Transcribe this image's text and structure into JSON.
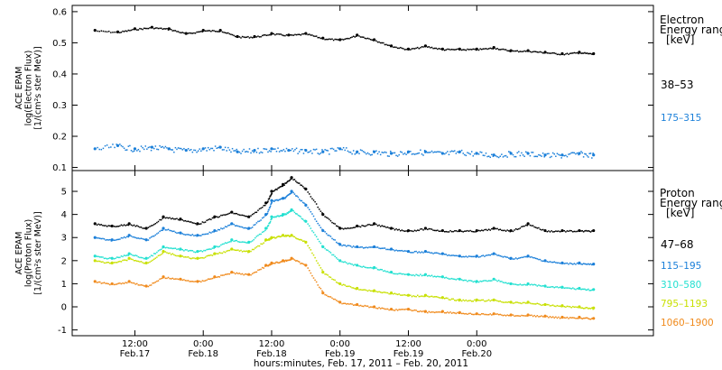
{
  "chart_data": [
    {
      "type": "scatter",
      "ylabel_lines": [
        "ACE EPAM",
        "log(Electron Flux)",
        "[1/(cm²s ster MeV)]"
      ],
      "ylim": [
        0.09,
        0.62
      ],
      "y_ticks": [
        0.1,
        0.2,
        0.3,
        0.4,
        0.5,
        0.6
      ],
      "y_tick_labels": [
        "0.1",
        "0.2",
        "0.3",
        "0.4",
        "0.5",
        "0.6"
      ],
      "legend_title_lines": [
        "Electron",
        "Energy ranges",
        "[keV]"
      ],
      "series": [
        {
          "name": "38–53",
          "color": "#000000",
          "x": [
            -7,
            -3,
            0,
            3,
            6,
            9,
            12,
            15,
            18,
            21,
            24,
            27,
            30,
            33,
            36,
            39,
            42,
            45,
            48,
            51,
            54,
            57,
            60,
            63,
            66,
            69,
            72,
            75,
            78,
            80.5
          ],
          "y": [
            0.54,
            0.535,
            0.545,
            0.55,
            0.545,
            0.53,
            0.54,
            0.54,
            0.52,
            0.52,
            0.53,
            0.525,
            0.53,
            0.515,
            0.51,
            0.525,
            0.51,
            0.49,
            0.48,
            0.49,
            0.48,
            0.48,
            0.48,
            0.485,
            0.475,
            0.475,
            0.47,
            0.465,
            0.47,
            0.465
          ]
        },
        {
          "name": "175–315",
          "color": "#1a7fd9",
          "x": [
            -7,
            -3,
            0,
            3,
            6,
            9,
            12,
            15,
            18,
            21,
            24,
            27,
            30,
            33,
            36,
            39,
            42,
            45,
            48,
            51,
            54,
            57,
            60,
            63,
            66,
            69,
            72,
            75,
            78,
            80.5
          ],
          "y": [
            0.16,
            0.17,
            0.16,
            0.165,
            0.16,
            0.155,
            0.16,
            0.165,
            0.15,
            0.155,
            0.16,
            0.155,
            0.155,
            0.15,
            0.16,
            0.15,
            0.15,
            0.145,
            0.15,
            0.15,
            0.145,
            0.15,
            0.145,
            0.14,
            0.145,
            0.145,
            0.14,
            0.14,
            0.145,
            0.14
          ]
        }
      ]
    },
    {
      "type": "scatter",
      "ylabel_lines": [
        "ACE EPAM",
        "log(Proton Flux)",
        "[1/(cm²s ster MeV)]"
      ],
      "ylim": [
        -1.25,
        5.9
      ],
      "y_ticks": [
        -1,
        0,
        1,
        2,
        3,
        4,
        5
      ],
      "y_tick_labels": [
        "-1",
        "0",
        "1",
        "2",
        "3",
        "4",
        "5"
      ],
      "legend_title_lines": [
        "Proton",
        "Energy ranges",
        "[keV]"
      ],
      "series": [
        {
          "name": "47–68",
          "color": "#000000",
          "x": [
            -7,
            -4,
            -1,
            2,
            5,
            8,
            11,
            14,
            17,
            20,
            23,
            24,
            26,
            27.5,
            30,
            33,
            36,
            39,
            42,
            45,
            48,
            51,
            54,
            57,
            60,
            63,
            66,
            69,
            72,
            75,
            78,
            80.5
          ],
          "y": [
            3.6,
            3.5,
            3.6,
            3.4,
            3.9,
            3.8,
            3.6,
            3.9,
            4.1,
            3.9,
            4.5,
            5.0,
            5.3,
            5.6,
            5.1,
            4.0,
            3.4,
            3.5,
            3.6,
            3.4,
            3.3,
            3.4,
            3.3,
            3.3,
            3.3,
            3.4,
            3.3,
            3.6,
            3.3,
            3.3,
            3.3,
            3.3
          ]
        },
        {
          "name": "115–195",
          "color": "#1a7fd9",
          "x": [
            -7,
            -4,
            -1,
            2,
            5,
            8,
            11,
            14,
            17,
            20,
            23,
            24,
            26,
            27.5,
            30,
            33,
            36,
            39,
            42,
            45,
            48,
            51,
            54,
            57,
            60,
            63,
            66,
            69,
            72,
            75,
            78,
            80.5
          ],
          "y": [
            3.0,
            2.9,
            3.1,
            2.9,
            3.4,
            3.2,
            3.1,
            3.3,
            3.6,
            3.4,
            4.0,
            4.6,
            4.7,
            5.0,
            4.4,
            3.3,
            2.7,
            2.6,
            2.6,
            2.5,
            2.4,
            2.4,
            2.3,
            2.2,
            2.2,
            2.3,
            2.1,
            2.2,
            2.0,
            1.9,
            1.9,
            1.85
          ]
        },
        {
          "name": "310–580",
          "color": "#22e0d0",
          "x": [
            -7,
            -4,
            -1,
            2,
            5,
            8,
            11,
            14,
            17,
            20,
            23,
            24,
            26,
            27.5,
            30,
            33,
            36,
            39,
            42,
            45,
            48,
            51,
            54,
            57,
            60,
            63,
            66,
            69,
            72,
            75,
            78,
            80.5
          ],
          "y": [
            2.2,
            2.1,
            2.3,
            2.1,
            2.6,
            2.5,
            2.4,
            2.6,
            2.9,
            2.8,
            3.4,
            3.9,
            4.0,
            4.2,
            3.7,
            2.6,
            2.0,
            1.8,
            1.7,
            1.5,
            1.4,
            1.4,
            1.3,
            1.2,
            1.1,
            1.2,
            1.0,
            1.0,
            0.9,
            0.85,
            0.8,
            0.75
          ]
        },
        {
          "name": "795–1193",
          "color": "#c8e000",
          "x": [
            -7,
            -4,
            -1,
            2,
            5,
            8,
            11,
            14,
            17,
            20,
            23,
            24,
            26,
            27.5,
            30,
            33,
            36,
            39,
            42,
            45,
            48,
            51,
            54,
            57,
            60,
            63,
            66,
            69,
            72,
            75,
            78,
            80.5
          ],
          "y": [
            2.0,
            1.9,
            2.1,
            1.9,
            2.4,
            2.2,
            2.1,
            2.3,
            2.5,
            2.4,
            2.9,
            3.0,
            3.1,
            3.1,
            2.8,
            1.5,
            1.0,
            0.8,
            0.7,
            0.6,
            0.5,
            0.5,
            0.4,
            0.3,
            0.3,
            0.3,
            0.2,
            0.2,
            0.1,
            0.05,
            0.0,
            -0.05
          ]
        },
        {
          "name": "1060–1900",
          "color": "#f08a1c",
          "x": [
            -7,
            -4,
            -1,
            2,
            5,
            8,
            11,
            14,
            17,
            20,
            23,
            24,
            26,
            27.5,
            30,
            33,
            36,
            39,
            42,
            45,
            48,
            51,
            54,
            57,
            60,
            63,
            66,
            69,
            72,
            75,
            78,
            80.5
          ],
          "y": [
            1.1,
            1.0,
            1.1,
            0.9,
            1.3,
            1.2,
            1.1,
            1.3,
            1.5,
            1.4,
            1.8,
            1.9,
            2.0,
            2.1,
            1.8,
            0.6,
            0.2,
            0.1,
            0.0,
            -0.1,
            -0.1,
            -0.2,
            -0.2,
            -0.25,
            -0.3,
            -0.3,
            -0.35,
            -0.35,
            -0.4,
            -0.45,
            -0.45,
            -0.5
          ]
        }
      ]
    }
  ],
  "x_axis": {
    "range": [
      -11,
      91
    ],
    "ticks": [
      {
        "x": 0,
        "time": "12:00",
        "date": "Feb.17"
      },
      {
        "x": 12,
        "time": "0:00",
        "date": "Feb.18"
      },
      {
        "x": 24,
        "time": "12:00",
        "date": "Feb.18"
      },
      {
        "x": 36,
        "time": "0:00",
        "date": "Feb.19"
      },
      {
        "x": 48,
        "time": "12:00",
        "date": "Feb.19"
      },
      {
        "x": 60,
        "time": "0:00",
        "date": "Feb.20"
      }
    ],
    "label": "hours:minutes, Feb. 17, 2011 – Feb. 20, 2011"
  }
}
